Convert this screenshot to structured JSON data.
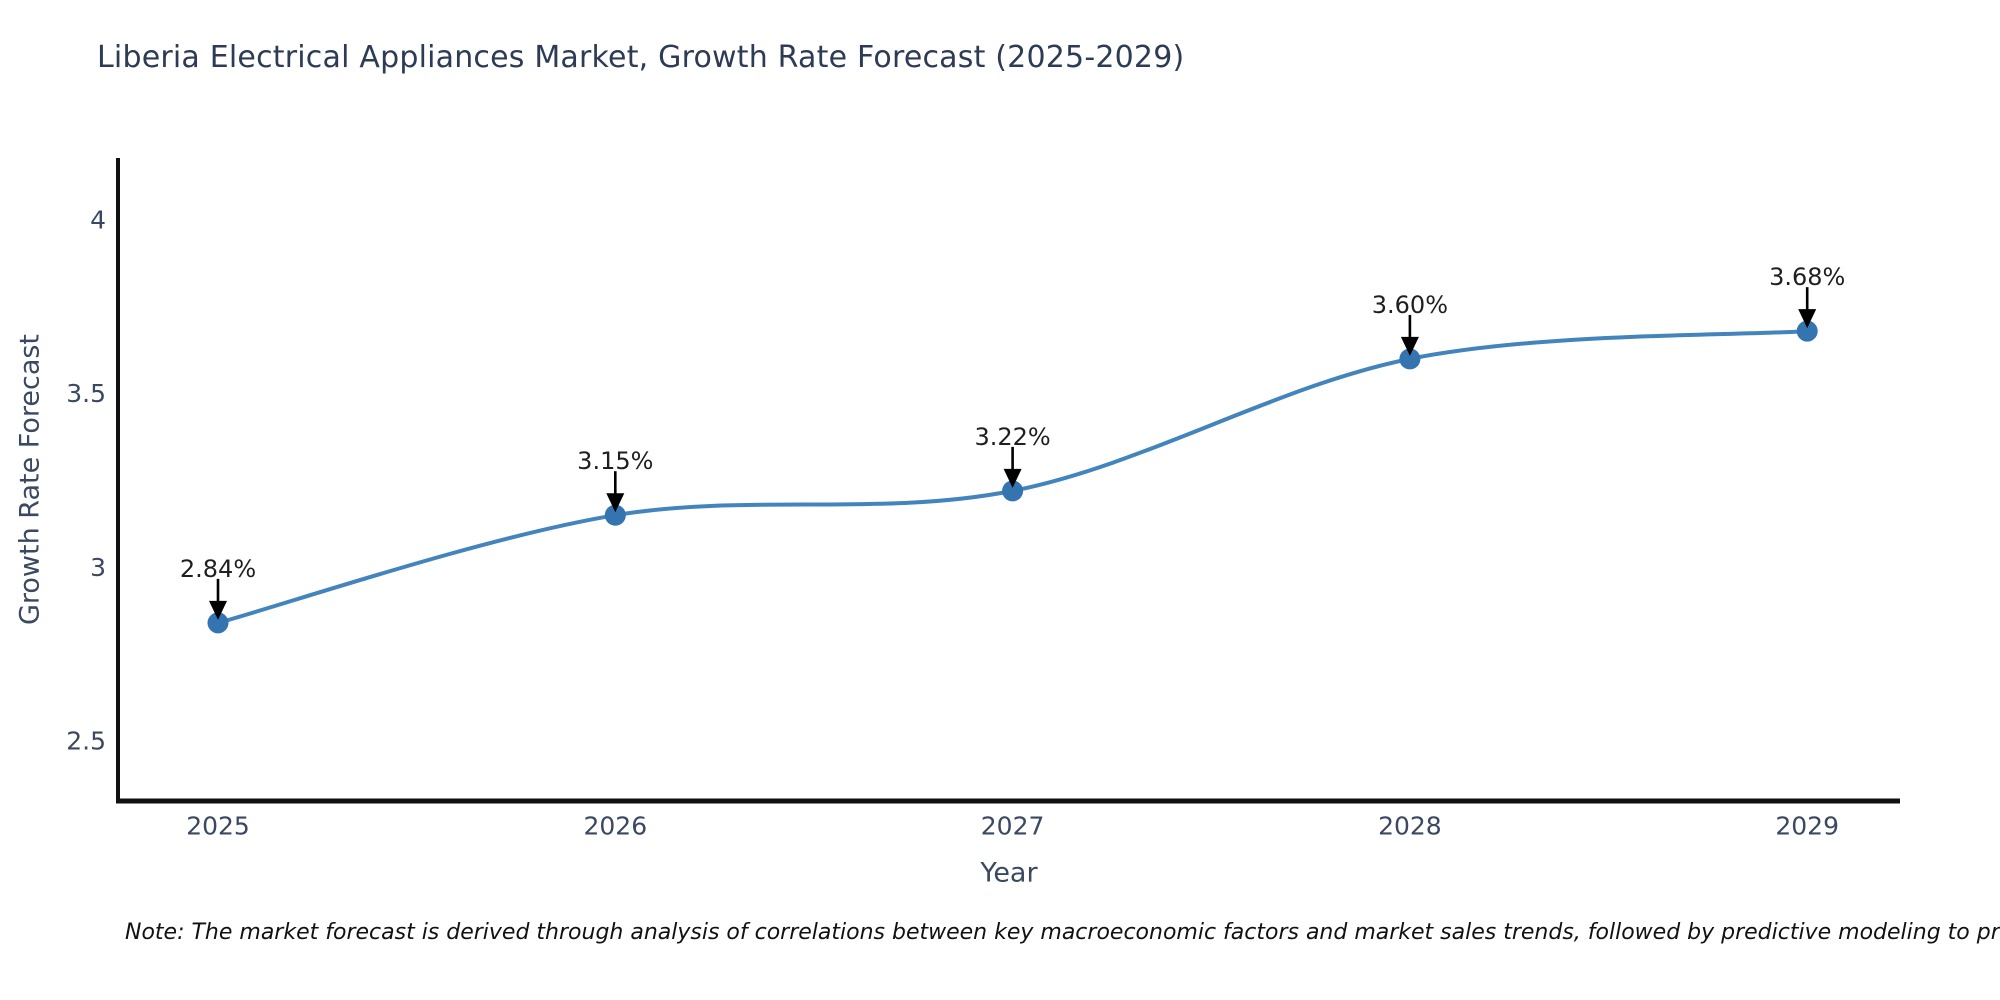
{
  "title": "Liberia Electrical Appliances Market, Growth Rate Forecast (2025-2029)",
  "note": "Note: The market forecast is derived through analysis of correlations between key macroeconomic factors and market sales trends, followed by predictive modeling to project future sales",
  "chart_data": {
    "type": "line",
    "title": "Liberia Electrical Appliances Market, Growth Rate Forecast (2025-2029)",
    "x": [
      2025,
      2026,
      2027,
      2028,
      2029
    ],
    "xticklabels": [
      "2025",
      "2026",
      "2027",
      "2028",
      "2029"
    ],
    "values": [
      2.84,
      3.15,
      3.22,
      3.6,
      3.68
    ],
    "point_labels": [
      "2.84%",
      "3.15%",
      "3.22%",
      "3.60%",
      "3.68%"
    ],
    "xlabel": "Year",
    "ylabel": "Growth Rate Forecast",
    "yticks": [
      4,
      3.5,
      3,
      2.5
    ],
    "ytick_labels": [
      "4",
      "3.5",
      "3",
      "2.5"
    ],
    "ylim": [
      2.32,
      4.18
    ],
    "xlim": [
      2024.74,
      2029.23
    ],
    "grid": false,
    "legend": "none",
    "line_style": "smooth-spline",
    "annotations": "value labels with downward black arrows above each point"
  },
  "colors": {
    "background": "#ffffff",
    "line": "#4384bd",
    "marker": "#3474b0",
    "spine": "#111111",
    "title_text": "#2d3b55",
    "axis_text": "#3a4860",
    "annotation_text": "#1f1f1f",
    "arrow": "#000000"
  }
}
